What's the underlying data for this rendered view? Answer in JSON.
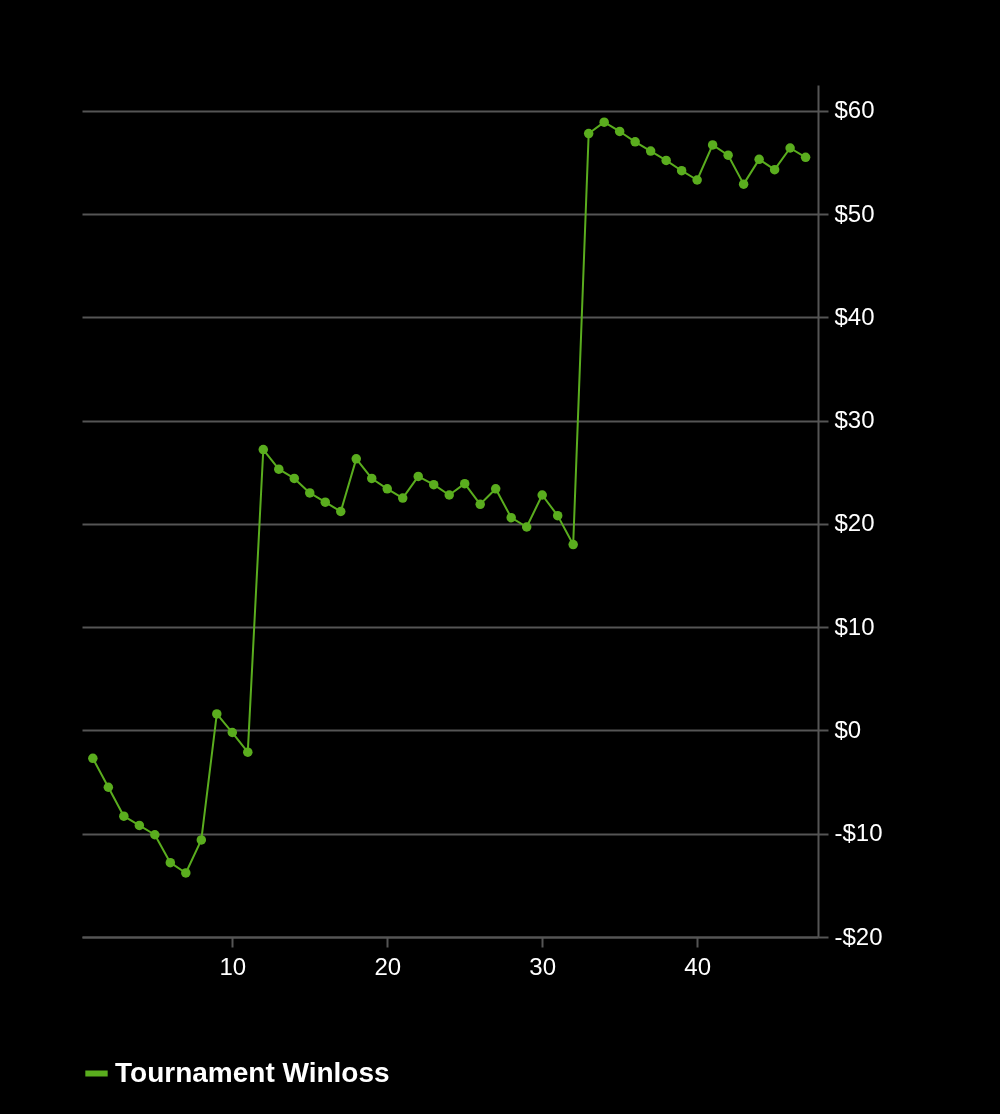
{
  "chart_data": {
    "type": "line",
    "x": [
      1,
      2,
      3,
      4,
      5,
      6,
      7,
      8,
      9,
      10,
      11,
      12,
      13,
      14,
      15,
      16,
      17,
      18,
      19,
      20,
      21,
      22,
      23,
      24,
      25,
      26,
      27,
      28,
      29,
      30,
      31,
      32,
      33,
      34,
      35,
      36,
      37,
      38,
      39,
      40,
      41,
      42,
      43,
      44,
      45,
      46,
      47
    ],
    "series": [
      {
        "name": "Tournament Winloss",
        "color": "#5aad1e",
        "values": [
          -2.7,
          -5.5,
          -8.3,
          -9.2,
          -10.1,
          -12.8,
          -13.8,
          -10.6,
          1.6,
          -0.2,
          -2.1,
          27.2,
          25.3,
          24.4,
          23.0,
          22.1,
          21.2,
          26.3,
          24.4,
          23.4,
          22.5,
          24.6,
          23.8,
          22.8,
          23.9,
          21.9,
          23.4,
          20.6,
          19.7,
          22.8,
          20.8,
          18.0,
          57.8,
          58.9,
          58.0,
          57.0,
          56.1,
          55.2,
          54.2,
          53.3,
          56.7,
          55.7,
          52.9,
          55.3,
          54.3,
          56.4,
          55.5
        ]
      }
    ],
    "xlim": [
      0.3,
      47.8
    ],
    "xticks": [
      10,
      20,
      30,
      40
    ],
    "ylim": [
      -20,
      62.5
    ],
    "yticks": [
      {
        "value": -20,
        "label": "-$20"
      },
      {
        "value": -10,
        "label": "-$10"
      },
      {
        "value": 0,
        "label": "$0"
      },
      {
        "value": 10,
        "label": "$10"
      },
      {
        "value": 20,
        "label": "$20"
      },
      {
        "value": 30,
        "label": "$30"
      },
      {
        "value": 40,
        "label": "$40"
      },
      {
        "value": 50,
        "label": "$50"
      },
      {
        "value": 60,
        "label": "$60"
      }
    ],
    "grid": "y",
    "legend": "bottom",
    "marker": "circle",
    "line_style": "solid"
  }
}
